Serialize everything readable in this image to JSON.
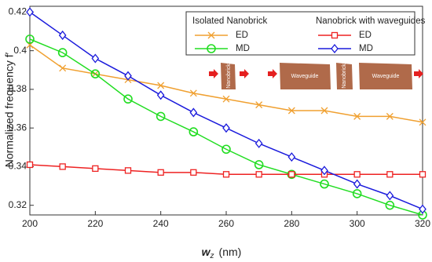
{
  "chart_data": {
    "type": "line",
    "y_label": "Normalized frequency f′",
    "x_label_symbol": "w",
    "x_label_subscript": "z",
    "x_label_unit": "(nm)",
    "x": [
      200,
      210,
      220,
      230,
      240,
      250,
      260,
      270,
      280,
      290,
      300,
      310,
      320
    ],
    "xlim": [
      200,
      320
    ],
    "xticks": [
      200,
      220,
      240,
      260,
      280,
      300,
      320
    ],
    "ylim": [
      0.315,
      0.423
    ],
    "yticks": [
      0.32,
      0.34,
      0.36,
      0.38,
      0.4,
      0.42
    ],
    "legend_groups": [
      "Isolated Nanobrick",
      "Nanobrick with waveguides"
    ],
    "series": [
      {
        "name": "ED",
        "color": "#f0a030",
        "marker": "x",
        "values": [
          0.403,
          0.391,
          0.388,
          0.385,
          0.382,
          0.378,
          0.375,
          0.372,
          0.369,
          0.369,
          0.366,
          0.366,
          0.363
        ]
      },
      {
        "name": "MD",
        "color": "#22dd22",
        "marker": "circle",
        "values": [
          0.406,
          0.399,
          0.388,
          0.375,
          0.366,
          0.358,
          0.349,
          0.341,
          0.336,
          0.331,
          0.326,
          0.32,
          0.315
        ]
      },
      {
        "name": "ED",
        "color": "#ee2222",
        "marker": "square",
        "values": [
          0.341,
          0.34,
          0.339,
          0.338,
          0.337,
          0.337,
          0.336,
          0.336,
          0.336,
          0.336,
          0.336,
          0.336,
          0.336
        ]
      },
      {
        "name": "MD",
        "color": "#1a1adc",
        "marker": "diamond",
        "values": [
          0.42,
          0.408,
          0.396,
          0.387,
          0.377,
          0.368,
          0.36,
          0.352,
          0.345,
          0.338,
          0.331,
          0.325,
          0.318
        ]
      }
    ],
    "inset": {
      "brick": "Nanobrick",
      "guide": "Waveguide"
    }
  }
}
